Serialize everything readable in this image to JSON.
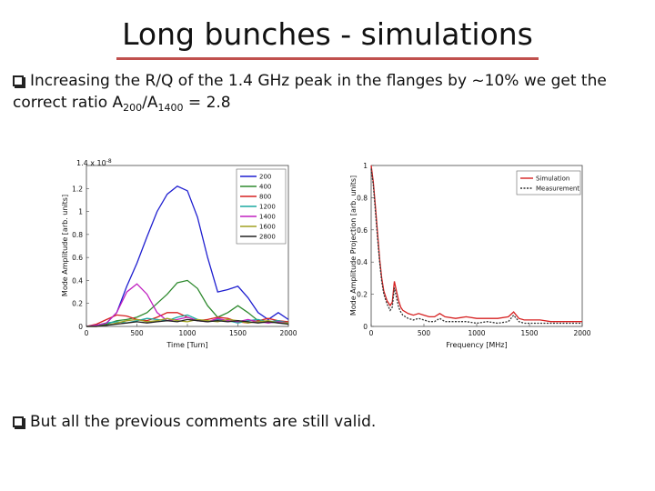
{
  "slide": {
    "title": "Long bunches - simulations",
    "bullet1": {
      "text_a": "Increasing the R/Q of the 1.4 GHz peak in the flanges by ~10% we get the correct ratio A",
      "sub_1": "200",
      "slash": "/A",
      "sub_2": "1400",
      "text_b": " = 2.8"
    },
    "bullet2": "But all the previous comments are still valid."
  },
  "colors": {
    "accent_rule": "#c0504d"
  },
  "chart_data": [
    {
      "type": "line",
      "xlabel": "Time [Turn]",
      "ylabel": "Mode Amplitude [arb. units]",
      "y_multiplier": "1.4 x 10^-8",
      "multiplier_base": "1.4 x 10",
      "multiplier_exp": "-8",
      "xlim": [
        0,
        2000
      ],
      "ylim": [
        0,
        1.4
      ],
      "x_ticks": [
        "0",
        "500",
        "1000",
        "1500",
        "2000"
      ],
      "y_ticks": [
        "0",
        "0.2",
        "0.4",
        "0.6",
        "0.8",
        "1",
        "1.2"
      ],
      "legend_position": "top-right",
      "x": [
        0,
        100,
        200,
        300,
        400,
        500,
        600,
        700,
        800,
        900,
        1000,
        1100,
        1200,
        1300,
        1400,
        1500,
        1600,
        1700,
        1800,
        1900,
        2000
      ],
      "series": [
        {
          "name": "200",
          "color": "#1f1fd0",
          "values": [
            0.0,
            0.01,
            0.03,
            0.12,
            0.35,
            0.55,
            0.78,
            1.0,
            1.15,
            1.22,
            1.18,
            0.95,
            0.6,
            0.3,
            0.32,
            0.35,
            0.25,
            0.12,
            0.06,
            0.12,
            0.06
          ]
        },
        {
          "name": "400",
          "color": "#2f8a2f",
          "values": [
            0.0,
            0.0,
            0.02,
            0.05,
            0.06,
            0.08,
            0.12,
            0.2,
            0.28,
            0.38,
            0.4,
            0.33,
            0.18,
            0.08,
            0.12,
            0.18,
            0.12,
            0.05,
            0.03,
            0.04,
            0.02
          ]
        },
        {
          "name": "800",
          "color": "#d62020",
          "values": [
            0.0,
            0.02,
            0.06,
            0.1,
            0.09,
            0.06,
            0.05,
            0.08,
            0.12,
            0.12,
            0.08,
            0.05,
            0.06,
            0.08,
            0.07,
            0.04,
            0.03,
            0.05,
            0.07,
            0.05,
            0.04
          ]
        },
        {
          "name": "1200",
          "color": "#1aa8a0",
          "values": [
            0.0,
            0.01,
            0.03,
            0.04,
            0.03,
            0.05,
            0.07,
            0.06,
            0.05,
            0.08,
            0.1,
            0.06,
            0.04,
            0.06,
            0.05,
            0.03,
            0.05,
            0.06,
            0.04,
            0.05,
            0.03
          ]
        },
        {
          "name": "1400",
          "color": "#c020c0",
          "values": [
            0.0,
            0.01,
            0.03,
            0.12,
            0.3,
            0.37,
            0.28,
            0.12,
            0.05,
            0.06,
            0.08,
            0.05,
            0.04,
            0.07,
            0.05,
            0.04,
            0.06,
            0.04,
            0.03,
            0.04,
            0.03
          ]
        },
        {
          "name": "1600",
          "color": "#a0a020",
          "values": [
            0.0,
            0.0,
            0.01,
            0.03,
            0.05,
            0.06,
            0.04,
            0.05,
            0.07,
            0.05,
            0.04,
            0.06,
            0.05,
            0.04,
            0.06,
            0.05,
            0.03,
            0.04,
            0.05,
            0.03,
            0.03
          ]
        },
        {
          "name": "2800",
          "color": "#222222",
          "values": [
            0.0,
            0.0,
            0.01,
            0.02,
            0.03,
            0.04,
            0.03,
            0.04,
            0.05,
            0.04,
            0.06,
            0.05,
            0.04,
            0.05,
            0.04,
            0.05,
            0.04,
            0.03,
            0.04,
            0.03,
            0.02
          ]
        }
      ]
    },
    {
      "type": "line",
      "xlabel": "Frequency [MHz]",
      "ylabel": "Mode Amplitude Projection [arb. units]",
      "xlim": [
        0,
        2000
      ],
      "ylim": [
        0,
        1
      ],
      "x_ticks": [
        "0",
        "500",
        "1000",
        "1500",
        "2000"
      ],
      "y_ticks": [
        "0",
        "0.2",
        "0.4",
        "0.6",
        "0.8",
        "1"
      ],
      "legend_position": "top-right",
      "x": [
        0,
        20,
        40,
        60,
        80,
        100,
        120,
        150,
        180,
        200,
        220,
        240,
        260,
        280,
        300,
        350,
        400,
        450,
        500,
        550,
        600,
        650,
        700,
        800,
        900,
        1000,
        1100,
        1200,
        1300,
        1350,
        1400,
        1450,
        1500,
        1600,
        1700,
        1800,
        1900,
        2000
      ],
      "series": [
        {
          "name": "Simulation",
          "color": "#d62020",
          "values": [
            1.0,
            0.9,
            0.75,
            0.58,
            0.42,
            0.3,
            0.22,
            0.16,
            0.13,
            0.15,
            0.28,
            0.22,
            0.16,
            0.12,
            0.1,
            0.08,
            0.07,
            0.08,
            0.07,
            0.06,
            0.06,
            0.08,
            0.06,
            0.05,
            0.06,
            0.05,
            0.05,
            0.05,
            0.06,
            0.09,
            0.05,
            0.04,
            0.04,
            0.04,
            0.03,
            0.03,
            0.03,
            0.03
          ]
        },
        {
          "name": "Measurement",
          "color": "#333333",
          "values": [
            0.98,
            0.88,
            0.72,
            0.55,
            0.4,
            0.28,
            0.2,
            0.14,
            0.1,
            0.12,
            0.24,
            0.18,
            0.12,
            0.09,
            0.07,
            0.05,
            0.04,
            0.05,
            0.04,
            0.03,
            0.03,
            0.05,
            0.03,
            0.03,
            0.03,
            0.02,
            0.03,
            0.02,
            0.03,
            0.07,
            0.03,
            0.02,
            0.02,
            0.02,
            0.02,
            0.02,
            0.02,
            0.02
          ]
        }
      ]
    }
  ]
}
